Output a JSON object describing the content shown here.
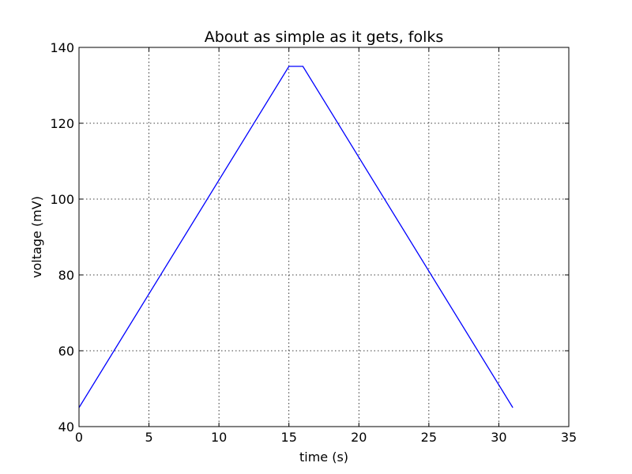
{
  "chart_data": {
    "type": "line",
    "title": "About as simple as it gets, folks",
    "xlabel": "time (s)",
    "ylabel": "voltage (mV)",
    "xlim": [
      0,
      35
    ],
    "ylim": [
      40,
      140
    ],
    "xticks": [
      0,
      5,
      10,
      15,
      20,
      25,
      30,
      35
    ],
    "yticks": [
      40,
      60,
      80,
      100,
      120,
      140
    ],
    "grid": true,
    "series": [
      {
        "color": "#0000ff",
        "x": [
          0,
          15,
          16,
          31
        ],
        "y": [
          45,
          135,
          135,
          45
        ]
      }
    ]
  }
}
